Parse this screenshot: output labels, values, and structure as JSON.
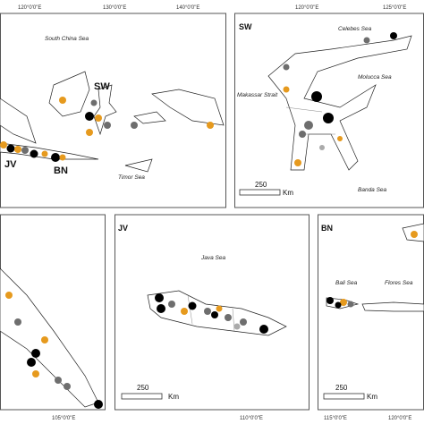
{
  "panels": [
    {
      "ticks": [
        "120°0'0\"E",
        "130°0'0\"E",
        "140°0'0\"E"
      ],
      "labels": [
        "South China Sea",
        "SW",
        "JV",
        "BN",
        "Timor Sea"
      ]
    },
    {
      "tag": "SW",
      "ticks": [
        "120°0'0\"E",
        "125°0'0\"E"
      ],
      "labels": [
        "Celebes Sea",
        "Molucca Sea",
        "Makassar Strait",
        "Banda Sea"
      ],
      "scale": [
        250,
        "Km"
      ]
    },
    {
      "ticks": [
        "105°0'0\"E"
      ]
    },
    {
      "tag": "JV",
      "ticks": [
        "110°0'0\"E"
      ],
      "labels": [
        "Java Sea"
      ],
      "scale": [
        250,
        "Km"
      ]
    },
    {
      "tag": "BN",
      "ticks": [
        "115°0'0\"E",
        "120°0'0\"E"
      ],
      "labels": [
        "Bali Sea",
        "Flores Sea"
      ],
      "scale": [
        250,
        "Km"
      ]
    }
  ]
}
